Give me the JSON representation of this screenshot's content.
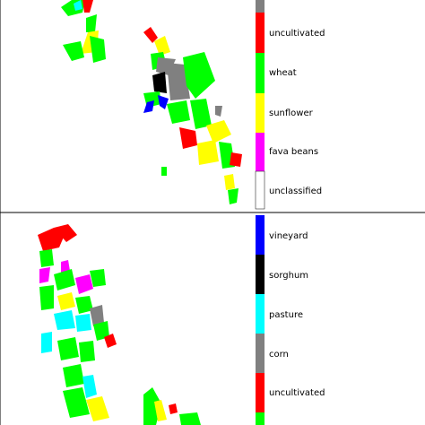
{
  "maps": [
    {
      "legend": [
        "uncultivated",
        "wheat",
        "sunflower",
        "fava beans",
        "unclassified"
      ]
    },
    {
      "legend": [
        "vineyard",
        "sorghum",
        "pasture",
        "corn",
        "uncultivated"
      ]
    }
  ]
}
